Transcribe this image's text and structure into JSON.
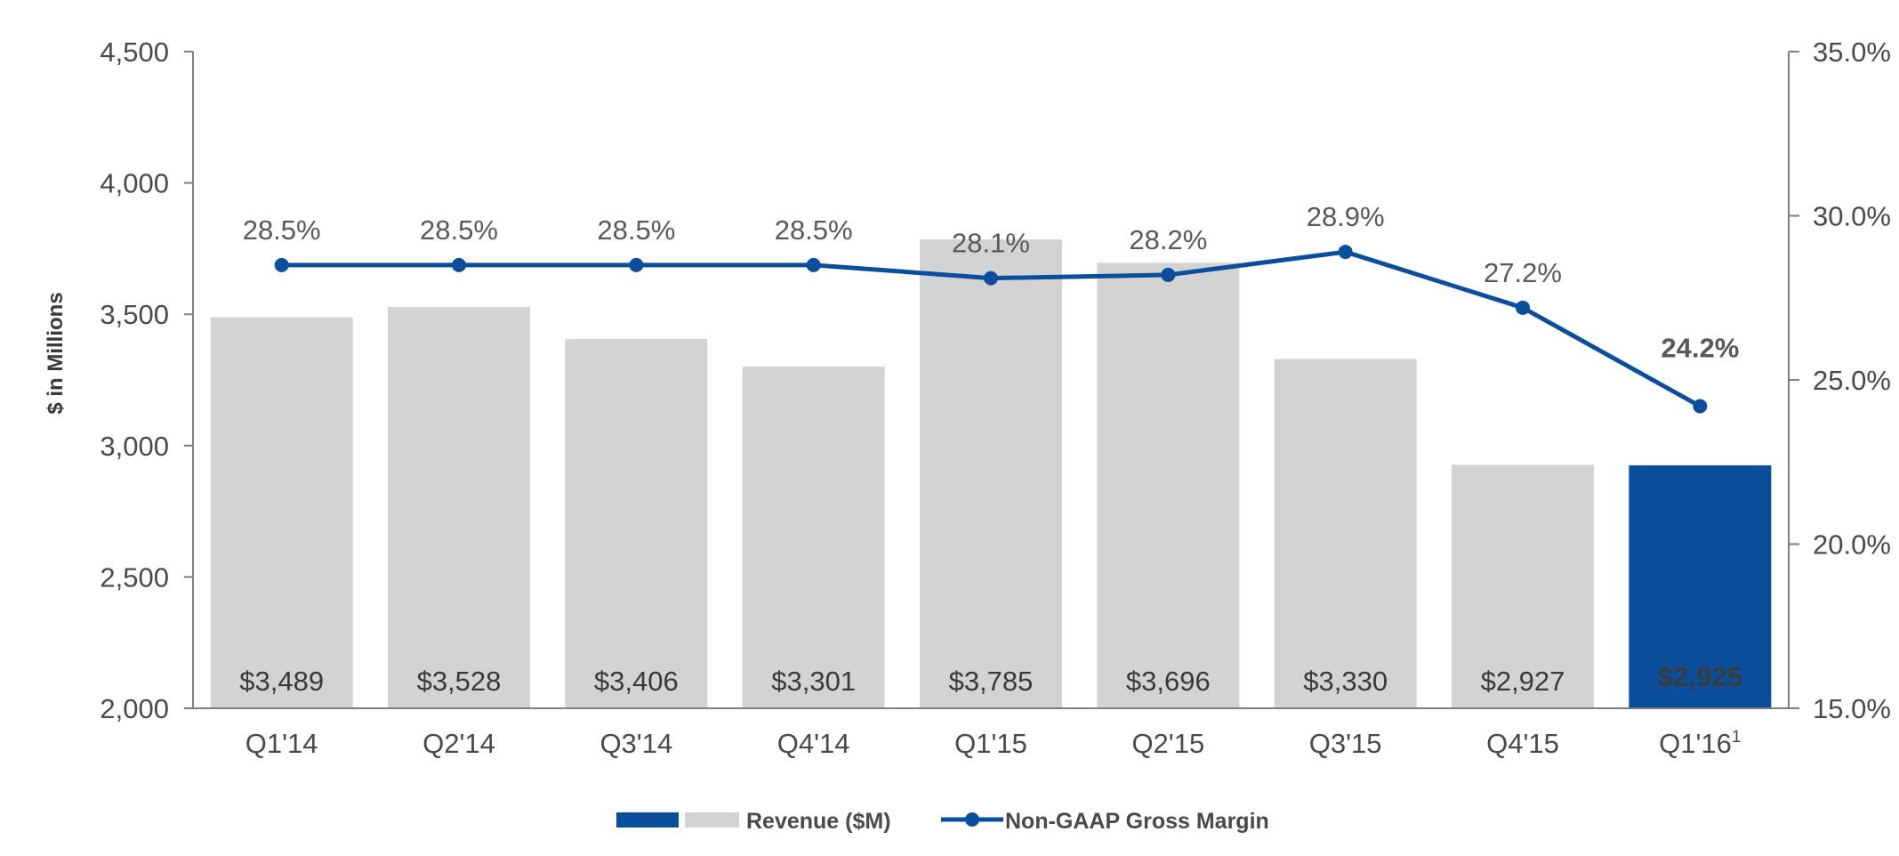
{
  "chart_data": {
    "type": "bar",
    "categories": [
      "Q1'14",
      "Q2'14",
      "Q3'14",
      "Q4'14",
      "Q1'15",
      "Q2'15",
      "Q3'15",
      "Q4'15",
      "Q1'16"
    ],
    "last_category_superscript": "1",
    "series": [
      {
        "name": "Revenue ($M)",
        "type": "bar",
        "axis": "left",
        "values": [
          3489,
          3528,
          3406,
          3301,
          3785,
          3696,
          3330,
          2927,
          2925
        ],
        "labels": [
          "$3,489",
          "$3,528",
          "$3,406",
          "$3,301",
          "$3,785",
          "$3,696",
          "$3,330",
          "$2,927",
          "$2,925"
        ],
        "color": "#d3d3d3",
        "highlight_color": "#0b4f9c",
        "highlight_index": 8
      },
      {
        "name": "Non-GAAP Gross Margin",
        "type": "line",
        "axis": "right",
        "values": [
          28.5,
          28.5,
          28.5,
          28.5,
          28.1,
          28.2,
          28.9,
          27.2,
          24.2
        ],
        "labels": [
          "28.5%",
          "28.5%",
          "28.5%",
          "28.5%",
          "28.1%",
          "28.2%",
          "28.9%",
          "27.2%",
          "24.2%"
        ],
        "color": "#0b4f9c"
      }
    ],
    "ylabel": "$ in Millions",
    "ylim": [
      2000,
      4500
    ],
    "yticks": [
      "2,000",
      "2,500",
      "3,000",
      "3,500",
      "4,000",
      "4,500"
    ],
    "y2lim": [
      15,
      35
    ],
    "y2ticks": [
      "15.0%",
      "20.0%",
      "25.0%",
      "30.0%",
      "35.0%"
    ],
    "legend_position": "bottom",
    "grid": false
  }
}
